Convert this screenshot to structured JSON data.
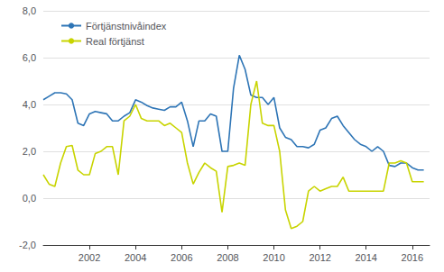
{
  "chart_data": {
    "type": "line",
    "x": [
      2000.0,
      2000.25,
      2000.5,
      2000.75,
      2001.0,
      2001.25,
      2001.5,
      2001.75,
      2002.0,
      2002.25,
      2002.5,
      2002.75,
      2003.0,
      2003.25,
      2003.5,
      2003.75,
      2004.0,
      2004.25,
      2004.5,
      2004.75,
      2005.0,
      2005.25,
      2005.5,
      2005.75,
      2006.0,
      2006.25,
      2006.5,
      2006.75,
      2007.0,
      2007.25,
      2007.5,
      2007.75,
      2008.0,
      2008.25,
      2008.5,
      2008.75,
      2009.0,
      2009.25,
      2009.5,
      2009.75,
      2010.0,
      2010.25,
      2010.5,
      2010.75,
      2011.0,
      2011.25,
      2011.5,
      2011.75,
      2012.0,
      2012.25,
      2012.5,
      2012.75,
      2013.0,
      2013.25,
      2013.5,
      2013.75,
      2014.0,
      2014.25,
      2014.5,
      2014.75,
      2015.0,
      2015.25,
      2015.5,
      2015.75,
      2016.0,
      2016.25,
      2016.5
    ],
    "series": [
      {
        "name": "Förtjänstnivåindex",
        "color": "#2E75B6",
        "values": [
          4.2,
          4.35,
          4.5,
          4.5,
          4.45,
          4.2,
          3.2,
          3.1,
          3.6,
          3.7,
          3.65,
          3.6,
          3.3,
          3.3,
          3.5,
          3.65,
          4.2,
          4.1,
          3.95,
          3.85,
          3.8,
          3.75,
          3.9,
          3.9,
          4.1,
          3.3,
          2.2,
          3.3,
          3.3,
          3.6,
          3.5,
          2.0,
          2.0,
          4.7,
          6.1,
          5.5,
          4.4,
          4.3,
          4.3,
          4.0,
          4.3,
          3.0,
          2.6,
          2.5,
          2.2,
          2.2,
          2.15,
          2.3,
          2.9,
          3.0,
          3.4,
          3.5,
          3.1,
          2.8,
          2.5,
          2.3,
          2.2,
          2.0,
          2.2,
          2.0,
          1.4,
          1.35,
          1.5,
          1.5,
          1.3,
          1.2,
          1.2
        ]
      },
      {
        "name": "Real förtjänst",
        "color": "#C8D400",
        "values": [
          1.0,
          0.6,
          0.5,
          1.5,
          2.2,
          2.25,
          1.2,
          1.0,
          1.0,
          1.9,
          2.0,
          2.2,
          2.2,
          1.0,
          3.3,
          3.5,
          4.0,
          3.4,
          3.3,
          3.3,
          3.3,
          3.1,
          3.2,
          3.0,
          2.8,
          1.5,
          0.6,
          1.1,
          1.5,
          1.3,
          1.15,
          -0.6,
          1.35,
          1.4,
          1.5,
          1.4,
          4.0,
          5.0,
          3.2,
          3.1,
          3.1,
          2.0,
          -0.5,
          -1.3,
          -1.2,
          -1.0,
          0.3,
          0.5,
          0.3,
          0.4,
          0.5,
          0.5,
          0.9,
          0.3,
          0.3,
          0.3,
          0.3,
          0.3,
          0.3,
          0.3,
          1.5,
          1.5,
          1.6,
          1.5,
          0.7,
          0.7,
          0.7
        ]
      }
    ],
    "xlim": [
      2000.0,
      2016.75
    ],
    "xticks": [
      2002,
      2004,
      2006,
      2008,
      2010,
      2012,
      2014,
      2016
    ],
    "ylim": [
      -2.0,
      8.0
    ],
    "yticks": [
      {
        "value": -2.0,
        "label": "-2,0"
      },
      {
        "value": 0.0,
        "label": "0,0"
      },
      {
        "value": 2.0,
        "label": "2,0"
      },
      {
        "value": 4.0,
        "label": "4,0"
      },
      {
        "value": 6.0,
        "label": "6,0"
      },
      {
        "value": 8.0,
        "label": "8,0"
      }
    ],
    "grid": true,
    "legend": "upper left"
  }
}
